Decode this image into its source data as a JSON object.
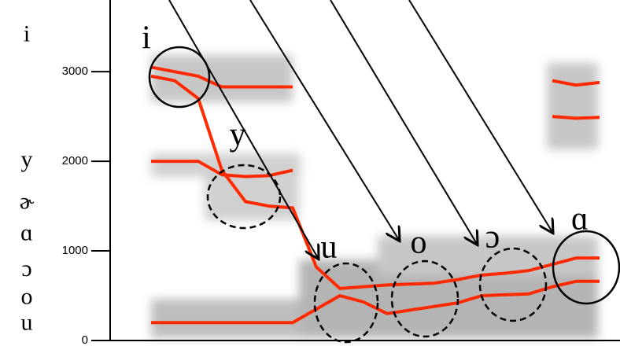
{
  "chart_data": {
    "type": "line",
    "ylim": [
      0,
      3800
    ],
    "yticks": [
      0,
      1000,
      2000,
      3000
    ],
    "side_labels": [
      {
        "value": 3400,
        "label": "i"
      },
      {
        "value": 2000,
        "label": "y"
      },
      {
        "value": 1530,
        "label": "ɚ"
      },
      {
        "value": 1180,
        "label": "ɑ"
      },
      {
        "value": 780,
        "label": "ɔ"
      },
      {
        "value": 470,
        "label": "o"
      },
      {
        "value": 180,
        "label": "u"
      }
    ],
    "vowel_labels": [
      "i",
      "y",
      "u",
      "o",
      "ɔ",
      "ɑ"
    ],
    "series": [
      {
        "color": "#ff2a00",
        "values": [
          200,
          200,
          200,
          200,
          200,
          200,
          200,
          350,
          500,
          430,
          300,
          340,
          380,
          420,
          500,
          510,
          520,
          600,
          660,
          660
        ]
      },
      {
        "color": "#ff2a00",
        "values": [
          2950,
          2900,
          2700,
          1900,
          1550,
          1500,
          1480,
          820,
          580,
          600,
          620,
          630,
          640,
          680,
          730,
          750,
          780,
          850,
          920,
          920
        ]
      },
      {
        "color": "#ff2a00",
        "values": [
          2000,
          2000,
          2000,
          1850,
          1830,
          1840,
          1900,
          null,
          null,
          null,
          null,
          null,
          null,
          null,
          null,
          null,
          null,
          null,
          null,
          null
        ]
      },
      {
        "color": "#ff2a00",
        "values": [
          3050,
          3000,
          2950,
          2830,
          2830,
          2830,
          2830,
          null,
          null,
          null,
          null,
          null,
          null,
          null,
          null,
          null,
          null,
          2500,
          2480,
          2490
        ]
      },
      {
        "color": "#ff2a00",
        "values": [
          null,
          null,
          null,
          null,
          null,
          null,
          null,
          null,
          null,
          null,
          null,
          null,
          null,
          null,
          null,
          null,
          null,
          2900,
          2850,
          2880
        ]
      }
    ]
  }
}
